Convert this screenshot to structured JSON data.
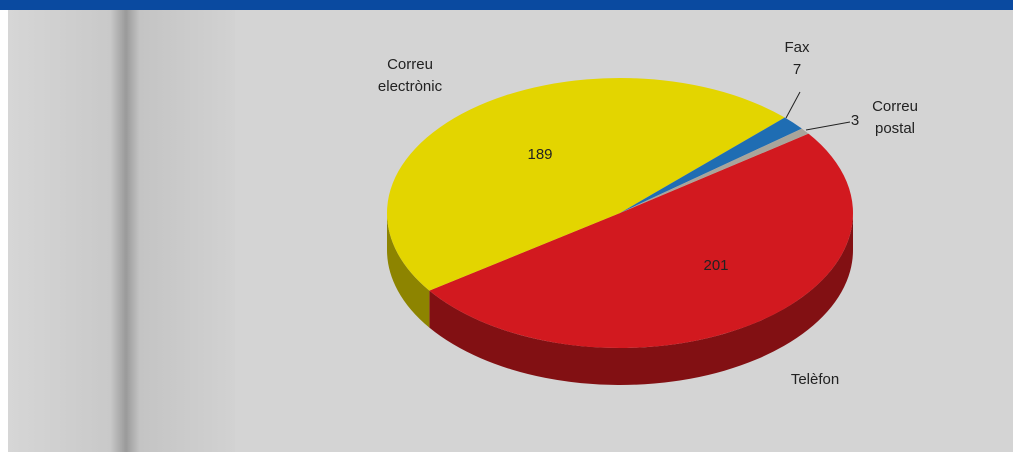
{
  "chart_data": {
    "type": "pie",
    "categories": [
      "Telèfon",
      "Correu electrònic",
      "Fax",
      "Correu postal"
    ],
    "values": [
      201,
      189,
      7,
      3
    ],
    "colors": [
      "#d2191f",
      "#e3d500",
      "#1f6db3",
      "#a9a59b"
    ]
  }
}
